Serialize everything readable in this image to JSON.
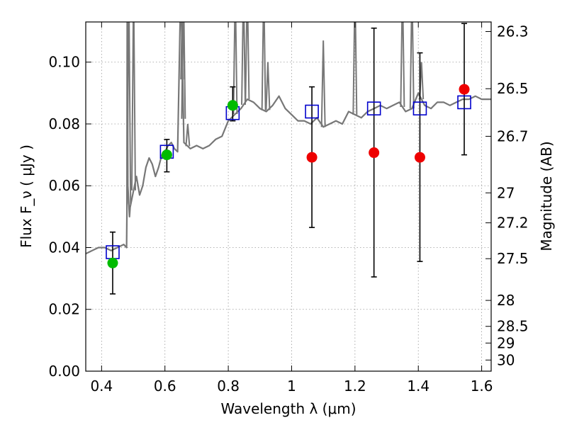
{
  "chart_data": {
    "type": "scatter",
    "xlabel": "Wavelength  λ (μm)",
    "ylabel": "Flux  F_ν  ( μJy )",
    "ylabel_right": "Magnitude (AB)",
    "xlim": [
      0.35,
      1.63
    ],
    "ylim": [
      0.0,
      0.113
    ],
    "grid": true,
    "x_ticks": [
      0.4,
      0.6,
      0.8,
      1.0,
      1.2,
      1.4,
      1.6
    ],
    "x_tick_labels": [
      "0.4",
      "0.6",
      "0.8",
      "1",
      "1.2",
      "1.4",
      "1.6"
    ],
    "y_ticks": [
      0.0,
      0.02,
      0.04,
      0.06,
      0.08,
      0.1
    ],
    "y_tick_labels": [
      "0.00",
      "0.02",
      "0.04",
      "0.06",
      "0.08",
      "0.10"
    ],
    "right_ticks": [
      {
        "label": "26.3",
        "flux": 0.1099
      },
      {
        "label": "26.5",
        "flux": 0.0914
      },
      {
        "label": "26.7",
        "flux": 0.076
      },
      {
        "label": "27",
        "flux": 0.0577
      },
      {
        "label": "27.2",
        "flux": 0.048
      },
      {
        "label": "27.5",
        "flux": 0.0364
      },
      {
        "label": "28",
        "flux": 0.0229
      },
      {
        "label": "28.5",
        "flux": 0.0145
      },
      {
        "label": "29",
        "flux": 0.0091
      },
      {
        "label": "30",
        "flux": 0.0036
      }
    ],
    "colors": {
      "sed": "#777777",
      "model_box": "#0000cc",
      "green": "#00bb00",
      "red": "#ee0000",
      "errorbar": "#000000",
      "grid": "#999999"
    },
    "sed_spectrum": {
      "x": [
        0.35,
        0.37,
        0.39,
        0.41,
        0.43,
        0.45,
        0.47,
        0.479,
        0.48,
        0.481,
        0.483,
        0.488,
        0.49,
        0.5,
        0.51,
        0.52,
        0.53,
        0.54,
        0.55,
        0.56,
        0.57,
        0.58,
        0.59,
        0.6,
        0.61,
        0.62,
        0.63,
        0.64,
        0.65,
        0.66,
        0.67,
        0.68,
        0.7,
        0.72,
        0.74,
        0.76,
        0.78,
        0.8,
        0.82,
        0.84,
        0.86,
        0.88,
        0.9,
        0.92,
        0.94,
        0.96,
        0.98,
        1.0,
        1.02,
        1.04,
        1.06,
        1.08,
        1.1,
        1.12,
        1.14,
        1.16,
        1.18,
        1.2,
        1.22,
        1.24,
        1.26,
        1.28,
        1.3,
        1.32,
        1.34,
        1.36,
        1.38,
        1.4,
        1.42,
        1.44,
        1.46,
        1.48,
        1.5,
        1.52,
        1.54,
        1.56,
        1.58,
        1.6,
        1.63
      ],
      "y": [
        0.038,
        0.039,
        0.04,
        0.04,
        0.039,
        0.04,
        0.041,
        0.04,
        0.052,
        0.125,
        0.06,
        0.05,
        0.053,
        0.058,
        0.063,
        0.057,
        0.06,
        0.066,
        0.069,
        0.067,
        0.063,
        0.066,
        0.07,
        0.071,
        0.073,
        0.074,
        0.072,
        0.071,
        0.125,
        0.074,
        0.073,
        0.072,
        0.073,
        0.072,
        0.073,
        0.075,
        0.076,
        0.081,
        0.083,
        0.085,
        0.088,
        0.087,
        0.085,
        0.084,
        0.086,
        0.089,
        0.085,
        0.083,
        0.081,
        0.081,
        0.08,
        0.082,
        0.079,
        0.08,
        0.081,
        0.08,
        0.084,
        0.083,
        0.082,
        0.084,
        0.085,
        0.086,
        0.085,
        0.086,
        0.087,
        0.084,
        0.085,
        0.09,
        0.086,
        0.085,
        0.087,
        0.087,
        0.086,
        0.087,
        0.088,
        0.088,
        0.089,
        0.088,
        0.088
      ]
    },
    "sed_emission_lines": [
      {
        "x": 0.486,
        "peak": 0.125
      },
      {
        "x": 0.501,
        "peak": 0.125
      },
      {
        "x": 0.656,
        "peak": 0.125
      },
      {
        "x": 0.6585,
        "peak": 0.125
      },
      {
        "x": 0.672,
        "peak": 0.08
      },
      {
        "x": 0.822,
        "peak": 0.125
      },
      {
        "x": 0.848,
        "peak": 0.125
      },
      {
        "x": 0.86,
        "peak": 0.125
      },
      {
        "x": 0.912,
        "peak": 0.125
      },
      {
        "x": 0.925,
        "peak": 0.1
      },
      {
        "x": 1.1,
        "peak": 0.107
      },
      {
        "x": 1.2,
        "peak": 0.125
      },
      {
        "x": 1.35,
        "peak": 0.125
      },
      {
        "x": 1.38,
        "peak": 0.125
      },
      {
        "x": 1.41,
        "peak": 0.1
      }
    ],
    "series": [
      {
        "marker": "square",
        "points": [
          {
            "x": 0.435,
            "y": 0.0385
          },
          {
            "x": 0.606,
            "y": 0.071
          },
          {
            "x": 0.814,
            "y": 0.0835
          },
          {
            "x": 1.064,
            "y": 0.084
          },
          {
            "x": 1.26,
            "y": 0.085
          },
          {
            "x": 1.405,
            "y": 0.085
          },
          {
            "x": 1.545,
            "y": 0.087
          }
        ]
      },
      {
        "marker": "circle",
        "color": "green",
        "points": [
          {
            "x": 0.435,
            "y": 0.035,
            "err_lo": 0.025,
            "err_hi": 0.045
          },
          {
            "x": 0.606,
            "y": 0.07,
            "err_lo": 0.0645,
            "err_hi": 0.075
          },
          {
            "x": 0.814,
            "y": 0.086,
            "err_lo": 0.081,
            "err_hi": 0.092
          }
        ]
      },
      {
        "marker": "circle",
        "color": "red",
        "points": [
          {
            "x": 1.064,
            "y": 0.0692,
            "err_lo": 0.0465,
            "err_hi": 0.092
          },
          {
            "x": 1.26,
            "y": 0.0707,
            "err_lo": 0.0305,
            "err_hi": 0.111
          },
          {
            "x": 1.405,
            "y": 0.0692,
            "err_lo": 0.0355,
            "err_hi": 0.103
          },
          {
            "x": 1.545,
            "y": 0.0912,
            "err_lo": 0.07,
            "err_hi": 0.1125
          }
        ]
      }
    ]
  }
}
